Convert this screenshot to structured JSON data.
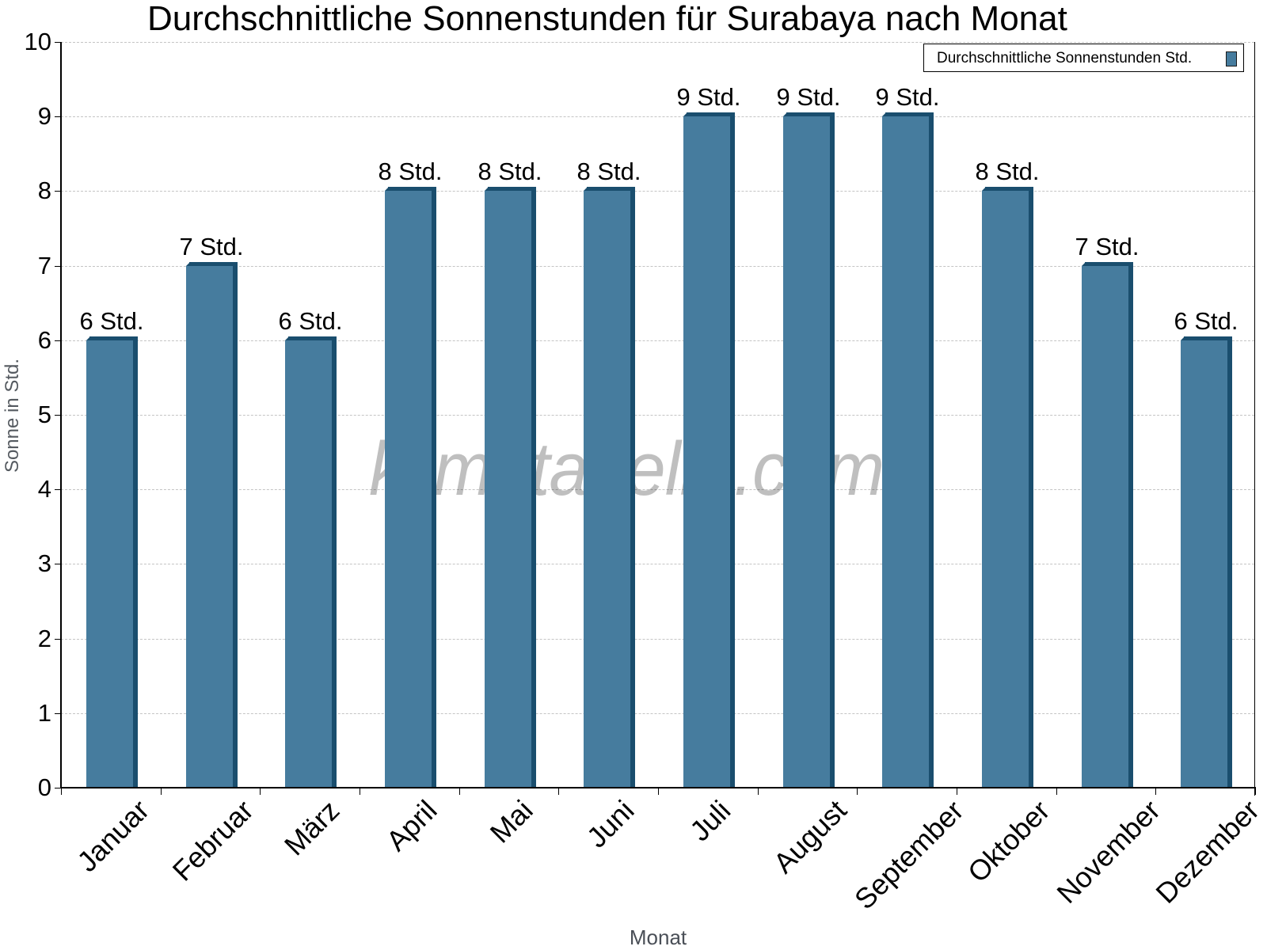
{
  "title": "Durchschnittliche Sonnenstunden für Surabaya nach Monat",
  "legend": {
    "label": "Durchschnittliche Sonnenstunden Std.",
    "color": "#467c9e"
  },
  "watermark": "klimatabelle.com",
  "axes": {
    "x_title": "Monat",
    "y_title": "Sonne in Std.",
    "y_ticks": [
      "0",
      "1",
      "2",
      "3",
      "4",
      "5",
      "6",
      "7",
      "8",
      "9",
      "10"
    ]
  },
  "colors": {
    "bar_front": "#467c9e",
    "bar_side": "#1a4e6e",
    "grid": "#c4c4c4"
  },
  "bars": [
    {
      "month": "Januar",
      "value": 6,
      "label": "6 Std."
    },
    {
      "month": "Februar",
      "value": 7,
      "label": "7 Std."
    },
    {
      "month": "März",
      "value": 6,
      "label": "6 Std."
    },
    {
      "month": "April",
      "value": 8,
      "label": "8 Std."
    },
    {
      "month": "Mai",
      "value": 8,
      "label": "8 Std."
    },
    {
      "month": "Juni",
      "value": 8,
      "label": "8 Std."
    },
    {
      "month": "Juli",
      "value": 9,
      "label": "9 Std."
    },
    {
      "month": "August",
      "value": 9,
      "label": "9 Std."
    },
    {
      "month": "September",
      "value": 9,
      "label": "9 Std."
    },
    {
      "month": "Oktober",
      "value": 8,
      "label": "8 Std."
    },
    {
      "month": "November",
      "value": 7,
      "label": "7 Std."
    },
    {
      "month": "Dezember",
      "value": 6,
      "label": "6 Std."
    }
  ],
  "chart_data": {
    "type": "bar",
    "title": "Durchschnittliche Sonnenstunden für Surabaya nach Monat",
    "categories": [
      "Januar",
      "Februar",
      "März",
      "April",
      "Mai",
      "Juni",
      "Juli",
      "August",
      "September",
      "Oktober",
      "November",
      "Dezember"
    ],
    "series": [
      {
        "name": "Durchschnittliche Sonnenstunden Std.",
        "values": [
          6,
          7,
          6,
          8,
          8,
          8,
          9,
          9,
          9,
          8,
          7,
          6
        ]
      }
    ],
    "data_labels": [
      "6 Std.",
      "7 Std.",
      "6 Std.",
      "8 Std.",
      "8 Std.",
      "8 Std.",
      "9 Std.",
      "9 Std.",
      "9 Std.",
      "8 Std.",
      "7 Std.",
      "6 Std."
    ],
    "xlabel": "Monat",
    "ylabel": "Sonne in Std.",
    "ylim": [
      0,
      10
    ],
    "yticks": [
      0,
      1,
      2,
      3,
      4,
      5,
      6,
      7,
      8,
      9,
      10
    ],
    "grid": true,
    "legend_position": "top-right",
    "watermark": "klimatabelle.com"
  }
}
